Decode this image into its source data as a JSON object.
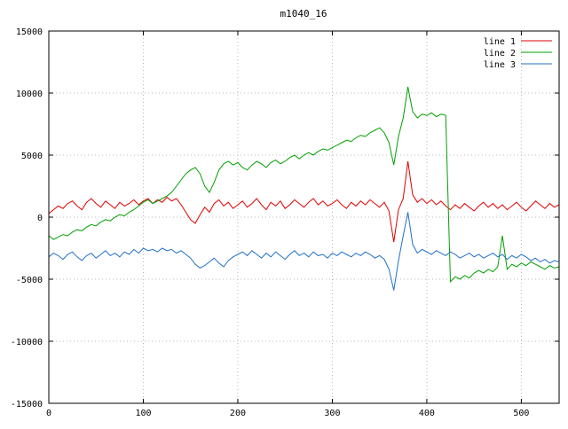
{
  "title": "m1040_16",
  "chart_data": {
    "type": "line",
    "title": "m1040_16",
    "xlabel": "",
    "ylabel": "",
    "xlim": [
      0,
      540
    ],
    "ylim": [
      -15000,
      15000
    ],
    "xticks": [
      0,
      100,
      200,
      300,
      400,
      500
    ],
    "yticks": [
      -15000,
      -10000,
      -5000,
      0,
      5000,
      10000,
      15000
    ],
    "grid": true,
    "grid_color": "#b8b8b8",
    "border_color": "#000000",
    "legend_position": "top-right",
    "x_start": 0,
    "x_step": 5,
    "series": [
      {
        "name": "line 1",
        "color": "#e00000",
        "values": [
          300,
          600,
          900,
          700,
          1100,
          1300,
          900,
          600,
          1200,
          1500,
          1100,
          800,
          1300,
          1000,
          700,
          1200,
          900,
          1100,
          1400,
          1000,
          1300,
          1500,
          1100,
          1400,
          1200,
          1600,
          1300,
          1500,
          1000,
          400,
          -200,
          -500,
          200,
          800,
          400,
          1100,
          1400,
          900,
          1200,
          700,
          1000,
          1300,
          800,
          1100,
          1500,
          1000,
          600,
          1200,
          900,
          1300,
          700,
          1000,
          1400,
          1100,
          800,
          1200,
          1500,
          1000,
          1300,
          900,
          1100,
          1400,
          1000,
          700,
          1200,
          900,
          1300,
          1000,
          1400,
          1100,
          800,
          1200,
          500,
          -2000,
          600,
          1500,
          4500,
          1800,
          1200,
          1500,
          1100,
          1400,
          1000,
          1300,
          900,
          600,
          1000,
          700,
          1100,
          800,
          500,
          900,
          1200,
          800,
          1100,
          700,
          1000,
          600,
          900,
          1200,
          800,
          500,
          900,
          1300,
          1000,
          700,
          1100,
          800,
          1000
        ]
      },
      {
        "name": "line 2",
        "color": "#00a000",
        "values": [
          -1500,
          -1800,
          -1600,
          -1400,
          -1500,
          -1200,
          -1000,
          -1100,
          -800,
          -600,
          -700,
          -400,
          -200,
          -300,
          0,
          200,
          100,
          400,
          600,
          900,
          1200,
          1400,
          1100,
          1300,
          1500,
          1700,
          2000,
          2500,
          3000,
          3500,
          3800,
          4000,
          3500,
          2500,
          2000,
          2800,
          3800,
          4300,
          4500,
          4200,
          4400,
          4000,
          3800,
          4200,
          4500,
          4300,
          4000,
          4400,
          4600,
          4300,
          4500,
          4800,
          5000,
          4700,
          5000,
          5200,
          5000,
          5300,
          5500,
          5400,
          5600,
          5800,
          6000,
          6200,
          6100,
          6400,
          6600,
          6500,
          6800,
          7000,
          7200,
          6800,
          6000,
          4200,
          6500,
          8000,
          10500,
          8500,
          8000,
          8300,
          8200,
          8400,
          8100,
          8300,
          8200,
          -5200,
          -4800,
          -5000,
          -4700,
          -4900,
          -4500,
          -4300,
          -4500,
          -4200,
          -4400,
          -4000,
          -1500,
          -4200,
          -3800,
          -4000,
          -3700,
          -3900,
          -3600,
          -3800,
          -4000,
          -4200,
          -3900,
          -4100,
          -4000
        ]
      },
      {
        "name": "line 3",
        "color": "#2070c8",
        "values": [
          -3200,
          -2900,
          -3100,
          -3400,
          -3000,
          -2800,
          -3200,
          -3500,
          -3100,
          -2900,
          -3300,
          -3000,
          -2700,
          -3100,
          -2900,
          -3200,
          -2800,
          -3000,
          -2600,
          -2900,
          -2500,
          -2700,
          -2600,
          -2800,
          -2500,
          -2700,
          -2600,
          -2900,
          -2700,
          -3000,
          -3300,
          -3800,
          -4100,
          -3900,
          -3600,
          -3300,
          -3700,
          -4000,
          -3500,
          -3200,
          -3000,
          -2800,
          -3100,
          -2700,
          -3000,
          -3300,
          -2900,
          -3200,
          -2800,
          -3100,
          -3400,
          -3000,
          -2700,
          -3100,
          -2900,
          -3200,
          -2800,
          -3100,
          -3000,
          -3300,
          -2900,
          -3100,
          -2800,
          -3000,
          -3200,
          -2900,
          -3100,
          -2800,
          -3000,
          -3300,
          -3100,
          -3400,
          -4200,
          -5900,
          -3500,
          -1500,
          400,
          -2200,
          -2900,
          -2600,
          -2800,
          -3000,
          -2700,
          -2900,
          -3100,
          -2800,
          -3000,
          -3300,
          -3100,
          -2900,
          -3200,
          -3000,
          -3300,
          -3100,
          -2900,
          -3200,
          -3000,
          -3400,
          -3100,
          -3300,
          -3000,
          -3200,
          -3500,
          -3300,
          -3600,
          -3400,
          -3700,
          -3500,
          -3600
        ]
      }
    ]
  }
}
